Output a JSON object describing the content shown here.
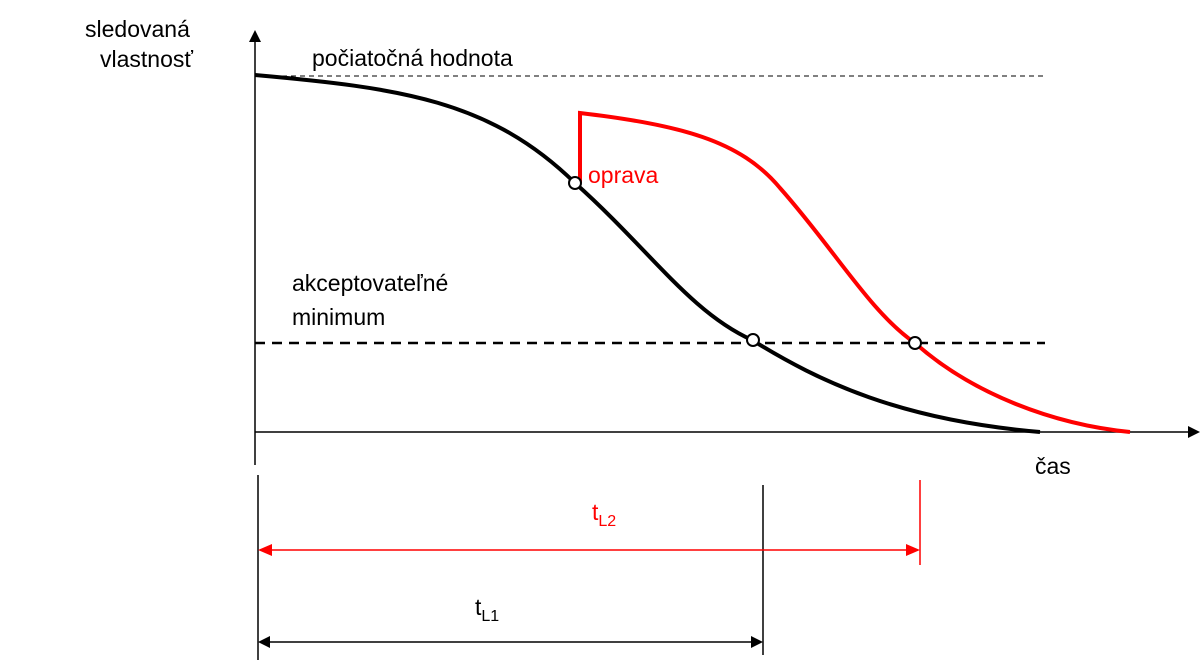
{
  "axis_label": {
    "y": [
      "sledovaná",
      "vlastnosť"
    ],
    "x": "čas"
  },
  "labels": {
    "initial": "počiatočná hodnota",
    "repair": "oprava",
    "minimum": [
      "akceptovateľné",
      "minimum"
    ]
  },
  "durations": [
    {
      "main": "t",
      "sub": "L1"
    },
    {
      "main": "t",
      "sub": "L2"
    }
  ]
}
